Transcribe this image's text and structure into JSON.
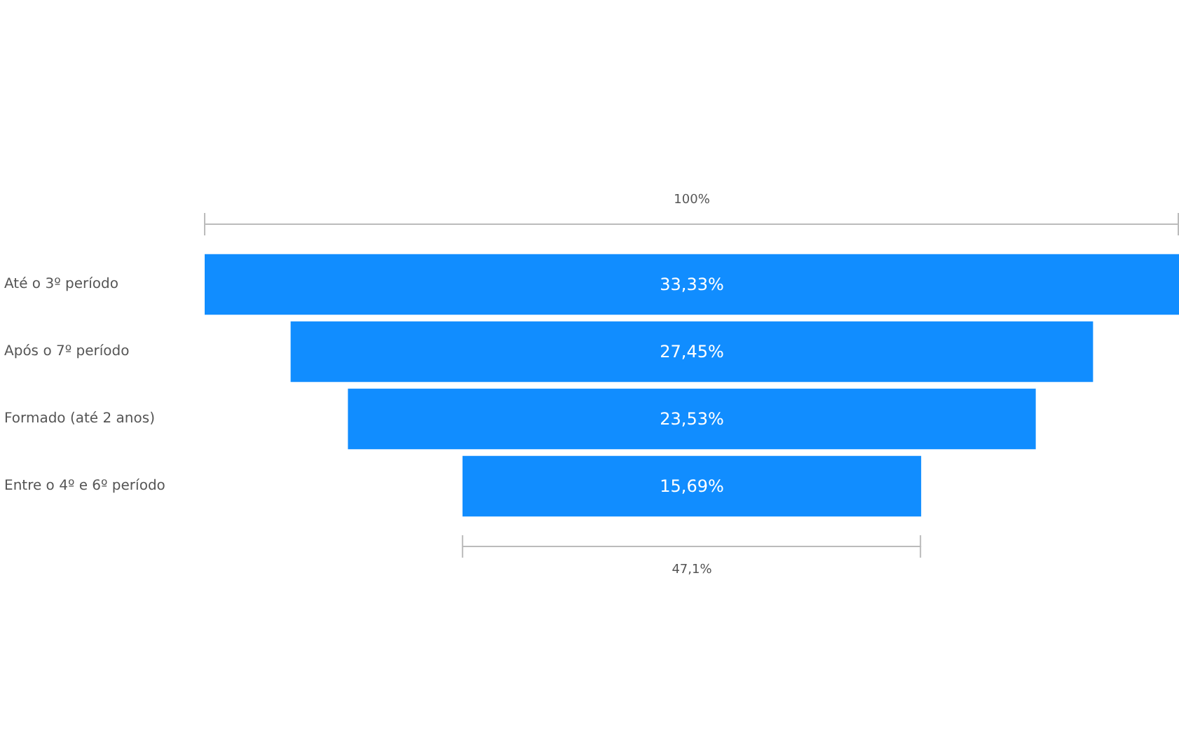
{
  "chart_data": {
    "type": "other",
    "categories": [
      "Até o 3º período",
      "Após o 7º período",
      "Formado (até 2 anos)",
      "Entre o 4º e 6º período"
    ],
    "values": [
      33.33,
      27.45,
      23.53,
      15.69
    ],
    "value_labels": [
      "33,33%",
      "27,45%",
      "23,53%",
      "15,69%"
    ],
    "color": "#118dff",
    "annotations": [
      "100%",
      "47,1%"
    ]
  }
}
